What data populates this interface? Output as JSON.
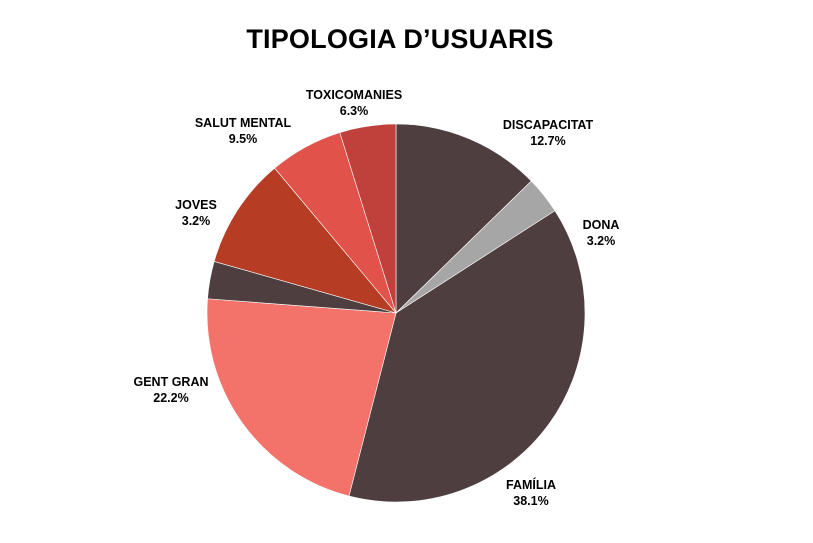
{
  "chart_data": {
    "type": "pie",
    "title": "TIPOLOGIA D’USUARIS",
    "slices": [
      {
        "label": "DISCAPACITAT",
        "percent_label": "12.7%",
        "value": 12.7,
        "color": "#4e3e40"
      },
      {
        "label": "DONA",
        "percent_label": "3.2%",
        "value": 3.2,
        "color": "#a6a6a6"
      },
      {
        "label": "FAMÍLIA",
        "percent_label": "38.1%",
        "value": 38.1,
        "color": "#4e3e40"
      },
      {
        "label": "GENT GRAN",
        "percent_label": "22.2%",
        "value": 22.2,
        "color": "#f3736b"
      },
      {
        "label": "JOVES",
        "percent_label": "3.2%",
        "value": 3.2,
        "color": "#4e3e40"
      },
      {
        "label": "SALUT MENTAL",
        "percent_label": "9.5%",
        "value": 9.5,
        "color": "#b63c24"
      },
      {
        "label": "TOXICOMANIES",
        "percent_label": "6.3%",
        "value": 6.3,
        "color": "#e0524a"
      },
      {
        "label": "",
        "percent_label": "",
        "value": 4.8,
        "color": "#c0403c"
      }
    ]
  }
}
